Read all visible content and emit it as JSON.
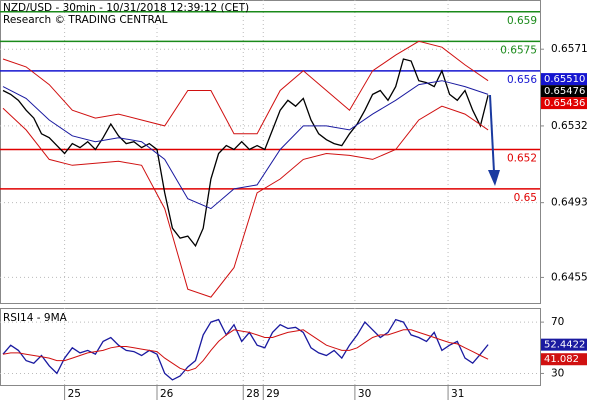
{
  "chart_data": [
    {
      "type": "line",
      "title": "NZD/USD - 30min - 10/31/2018 12:39:12 (CET)",
      "subtitle": "Research © TRADING CENTRAL",
      "x": [
        0,
        1,
        2,
        3,
        4,
        5,
        6,
        7,
        8,
        9,
        10,
        11,
        12,
        13,
        14,
        15,
        16,
        17,
        18,
        19,
        20,
        21,
        22,
        23,
        24,
        25,
        26,
        27,
        28,
        29,
        30,
        31,
        32,
        33,
        34,
        35,
        36,
        37,
        38,
        39,
        40,
        41,
        42,
        43,
        44,
        45,
        46,
        47,
        48,
        49,
        50,
        51,
        52,
        53,
        54,
        55,
        56,
        57,
        58,
        59,
        60,
        61,
        62,
        63
      ],
      "series": [
        {
          "color": "#000000",
          "values": [
            0.655,
            0.6548,
            0.6545,
            0.654,
            0.6536,
            0.6528,
            0.6526,
            0.6522,
            0.6518,
            0.6523,
            0.6521,
            0.6524,
            0.652,
            0.6526,
            0.6533,
            0.6527,
            0.6523,
            0.6524,
            0.6521,
            0.6523,
            0.652,
            0.6498,
            0.648,
            0.6475,
            0.6476,
            0.6471,
            0.648,
            0.6505,
            0.6518,
            0.6522,
            0.652,
            0.6524,
            0.652,
            0.6522,
            0.652,
            0.653,
            0.654,
            0.6545,
            0.6542,
            0.6546,
            0.6535,
            0.6528,
            0.6525,
            0.6523,
            0.6522,
            0.6528,
            0.6533,
            0.654,
            0.6548,
            0.655,
            0.6545,
            0.6552,
            0.6566,
            0.6565,
            0.6555,
            0.6554,
            0.6552,
            0.656,
            0.6548,
            0.6545,
            0.655,
            0.654,
            0.6532,
            0.65476
          ]
        },
        {
          "color": "#d01010",
          "x": [
            0,
            3,
            6,
            9,
            12,
            15,
            18,
            21,
            24,
            27,
            30,
            33,
            36,
            39,
            42,
            45,
            48,
            51,
            54,
            57,
            60,
            63
          ],
          "values": [
            0.6566,
            0.6562,
            0.6553,
            0.654,
            0.6536,
            0.6538,
            0.6535,
            0.6532,
            0.655,
            0.655,
            0.6528,
            0.6528,
            0.655,
            0.656,
            0.655,
            0.654,
            0.656,
            0.6568,
            0.6575,
            0.6572,
            0.6563,
            0.6555
          ]
        },
        {
          "color": "#d01010",
          "x": [
            0,
            3,
            6,
            9,
            12,
            15,
            18,
            21,
            24,
            27,
            30,
            33,
            36,
            39,
            42,
            45,
            48,
            51,
            54,
            57,
            60,
            63
          ],
          "values": [
            0.6541,
            0.653,
            0.6515,
            0.6512,
            0.6513,
            0.6514,
            0.6512,
            0.649,
            0.6449,
            0.6445,
            0.646,
            0.6498,
            0.6505,
            0.6515,
            0.6518,
            0.6517,
            0.6515,
            0.652,
            0.6535,
            0.6542,
            0.6538,
            0.653
          ]
        },
        {
          "color": "#1a1aa0",
          "x": [
            0,
            3,
            6,
            9,
            12,
            15,
            18,
            21,
            24,
            27,
            30,
            33,
            36,
            39,
            42,
            45,
            48,
            51,
            54,
            57,
            60,
            63
          ],
          "values": [
            0.6552,
            0.6546,
            0.6535,
            0.6527,
            0.6524,
            0.6526,
            0.6524,
            0.6515,
            0.6495,
            0.649,
            0.65,
            0.6502,
            0.652,
            0.6532,
            0.6532,
            0.653,
            0.6538,
            0.6545,
            0.6553,
            0.6555,
            0.6552,
            0.6548
          ]
        }
      ],
      "levels": [
        {
          "value": 0.659,
          "color": "#1a8a1a"
        },
        {
          "value": 0.6575,
          "color": "#1a8a1a"
        },
        {
          "value": 0.656,
          "color": "#1515d0"
        },
        {
          "value": 0.652,
          "color": "#e00000"
        },
        {
          "value": 0.65,
          "color": "#e00000"
        }
      ],
      "price_labels": [
        {
          "value": 0.6551,
          "label": "0.65510",
          "color": "#1515d0"
        },
        {
          "value": 0.65476,
          "color": "#000000"
        },
        {
          "value": 0.65436,
          "color": "#e00000"
        }
      ],
      "xlim": [
        -0.39,
        69.74
      ],
      "ylim": [
        0.6442,
        0.6596
      ],
      "yticks": [
        0.6571,
        0.6532,
        0.6493,
        0.6455
      ],
      "grid": true
    },
    {
      "type": "line",
      "title": "RSI14 - 9MA",
      "x": [
        0,
        1,
        2,
        3,
        4,
        5,
        6,
        7,
        8,
        9,
        10,
        11,
        12,
        13,
        14,
        15,
        16,
        17,
        18,
        19,
        20,
        21,
        22,
        23,
        24,
        25,
        26,
        27,
        28,
        29,
        30,
        31,
        32,
        33,
        34,
        35,
        36,
        37,
        38,
        39,
        40,
        41,
        42,
        43,
        44,
        45,
        46,
        47,
        48,
        49,
        50,
        51,
        52,
        53,
        54,
        55,
        56,
        57,
        58,
        59,
        60,
        61,
        62,
        63
      ],
      "series": [
        {
          "color": "#1a1aa0",
          "values": [
            45,
            52,
            48,
            40,
            38,
            44,
            36,
            30,
            42,
            50,
            46,
            48,
            45,
            55,
            58,
            52,
            48,
            47,
            44,
            48,
            45,
            30,
            25,
            28,
            35,
            40,
            60,
            70,
            72,
            60,
            68,
            55,
            62,
            52,
            50,
            62,
            68,
            65,
            66,
            62,
            50,
            46,
            44,
            48,
            42,
            52,
            60,
            70,
            64,
            58,
            62,
            72,
            70,
            60,
            58,
            55,
            62,
            48,
            52,
            55,
            42,
            38,
            45,
            52.4422
          ]
        },
        {
          "color": "#d01010",
          "values": [
            45,
            46,
            46,
            45,
            44,
            43,
            42,
            40,
            40,
            42,
            44,
            46,
            47,
            48,
            50,
            51,
            51,
            50,
            49,
            48,
            47,
            42,
            38,
            34,
            32,
            34,
            40,
            48,
            55,
            60,
            64,
            63,
            62,
            60,
            58,
            58,
            60,
            62,
            63,
            64,
            60,
            56,
            52,
            50,
            48,
            48,
            50,
            54,
            58,
            60,
            60,
            62,
            64,
            64,
            62,
            60,
            58,
            56,
            54,
            53,
            50,
            47,
            44,
            41.082
          ]
        }
      ],
      "xlim": [
        -0.39,
        69.74
      ],
      "ylim": [
        21,
        81
      ],
      "yticks": [
        70,
        30
      ],
      "grid": true,
      "xticks": [
        {
          "value": 8,
          "label": "25"
        },
        {
          "value": 20,
          "label": "26"
        },
        {
          "value": 31.2,
          "label": "28"
        },
        {
          "value": 33.8,
          "label": "29"
        },
        {
          "value": 45.7,
          "label": "30"
        },
        {
          "value": 57.8,
          "label": "31"
        }
      ]
    }
  ]
}
